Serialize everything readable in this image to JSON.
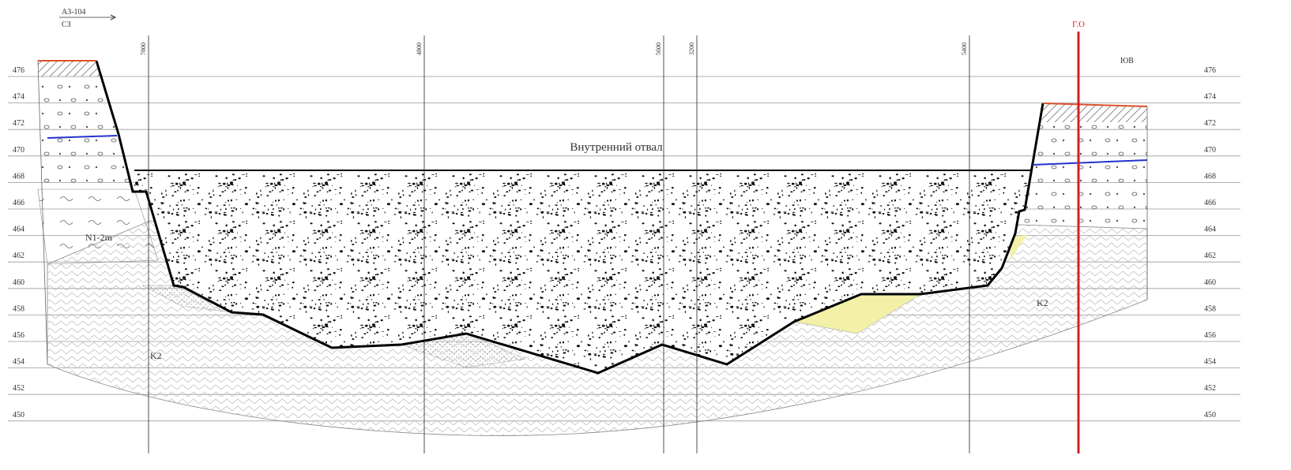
{
  "header": {
    "line_label": "А3-104",
    "direction_left": "СЗ",
    "direction_right": "ЮВ"
  },
  "elevations": [
    "476",
    "474",
    "472",
    "470",
    "468",
    "466",
    "464",
    "462",
    "460",
    "458",
    "456",
    "454",
    "452",
    "450"
  ],
  "profile_lines": [
    {
      "label": "7800"
    },
    {
      "label": "4800"
    },
    {
      "label": "5600"
    },
    {
      "label": "3200"
    },
    {
      "label": "5400"
    }
  ],
  "marker": {
    "label": "Г.О"
  },
  "zones": {
    "dump": "Внутренний отвал"
  },
  "formations": [
    {
      "label": "N1-2m"
    },
    {
      "label": "K2"
    },
    {
      "label": "K2"
    }
  ]
}
